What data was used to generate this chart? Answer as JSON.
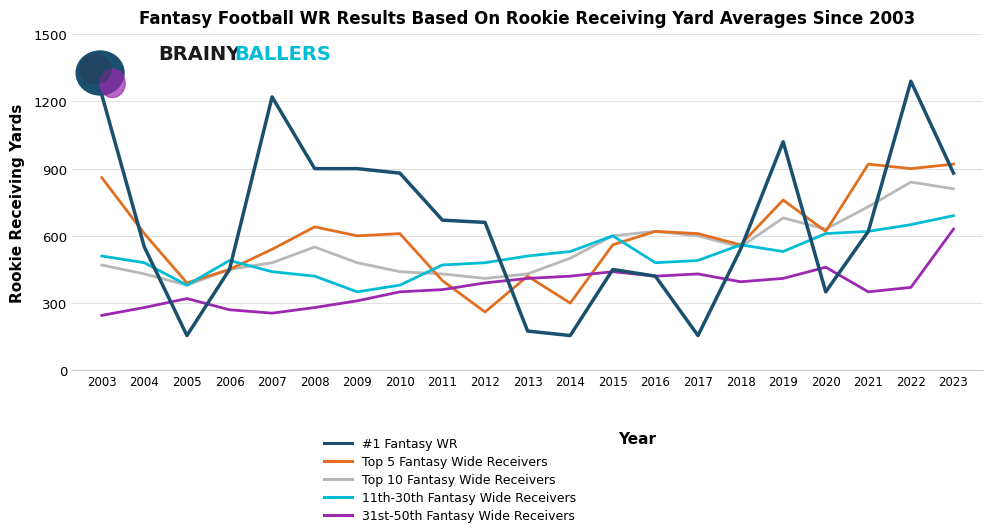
{
  "title": "Fantasy Football WR Results Based On Rookie Receiving Yard Averages Since 2003",
  "xlabel": "Year",
  "ylabel": "Rookie Receiving Yards",
  "years": [
    2003,
    2004,
    2005,
    2006,
    2007,
    2008,
    2009,
    2010,
    2011,
    2012,
    2013,
    2014,
    2015,
    2016,
    2017,
    2018,
    2019,
    2020,
    2021,
    2022,
    2023
  ],
  "wr1": [
    1230,
    550,
    155,
    450,
    1220,
    900,
    900,
    880,
    670,
    660,
    175,
    155,
    450,
    420,
    155,
    540,
    1020,
    350,
    620,
    1290,
    880
  ],
  "top5": [
    860,
    610,
    390,
    450,
    540,
    640,
    600,
    610,
    400,
    260,
    420,
    300,
    560,
    620,
    610,
    560,
    760,
    620,
    920,
    900,
    920
  ],
  "top10": [
    470,
    430,
    380,
    450,
    480,
    550,
    480,
    440,
    430,
    410,
    430,
    500,
    600,
    620,
    600,
    550,
    680,
    630,
    730,
    840,
    810
  ],
  "wr11_30": [
    510,
    480,
    380,
    490,
    440,
    420,
    350,
    380,
    470,
    480,
    510,
    530,
    600,
    480,
    490,
    560,
    530,
    610,
    620,
    650,
    690
  ],
  "wr31_50": [
    245,
    280,
    320,
    270,
    255,
    280,
    310,
    350,
    360,
    390,
    410,
    420,
    440,
    420,
    430,
    395,
    410,
    460,
    350,
    370,
    630
  ],
  "wr1_color": "#1a4f6e",
  "top5_color": "#e07020",
  "top10_color": "#b8b8b8",
  "wr11_30_color": "#00bcd4",
  "wr31_50_color": "#9c27b0",
  "ylim": [
    0,
    1500
  ],
  "yticks": [
    0,
    300,
    600,
    900,
    1200,
    1500
  ],
  "legend_labels": [
    "#1 Fantasy WR",
    "Top 5 Fantasy Wide Receivers",
    "Top 10 Fantasy Wide Receivers",
    "11th-30th Fantasy Wide Receivers",
    "31st-50th Fantasy Wide Receivers"
  ],
  "brainy_color": "#1a1a1a",
  "ballers_color": "#00bcd4"
}
